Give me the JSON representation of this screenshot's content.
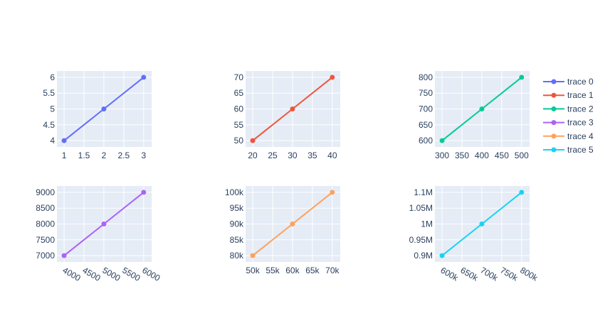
{
  "chart_data": [
    {
      "type": "line",
      "name": "trace 0",
      "color": "#636efa",
      "x": [
        1,
        2,
        3
      ],
      "y": [
        4,
        5,
        6
      ],
      "xlim": [
        0.82,
        3.2
      ],
      "ylim": [
        3.8,
        6.2
      ],
      "xticks": [
        {
          "v": 1,
          "l": "1"
        },
        {
          "v": 1.5,
          "l": "1.5"
        },
        {
          "v": 2,
          "l": "2"
        },
        {
          "v": 2.5,
          "l": "2.5"
        },
        {
          "v": 3,
          "l": "3"
        }
      ],
      "yticks": [
        {
          "v": 4,
          "l": "4"
        },
        {
          "v": 4.5,
          "l": "4.5"
        },
        {
          "v": 5,
          "l": "5"
        },
        {
          "v": 5.5,
          "l": "5.5"
        },
        {
          "v": 6,
          "l": "6"
        }
      ],
      "xrot": false
    },
    {
      "type": "line",
      "name": "trace 1",
      "color": "#EF553B",
      "x": [
        20,
        30,
        40
      ],
      "y": [
        50,
        60,
        70
      ],
      "xlim": [
        18.2,
        42
      ],
      "ylim": [
        48,
        72
      ],
      "xticks": [
        {
          "v": 20,
          "l": "20"
        },
        {
          "v": 25,
          "l": "25"
        },
        {
          "v": 30,
          "l": "30"
        },
        {
          "v": 35,
          "l": "35"
        },
        {
          "v": 40,
          "l": "40"
        }
      ],
      "yticks": [
        {
          "v": 50,
          "l": "50"
        },
        {
          "v": 55,
          "l": "55"
        },
        {
          "v": 60,
          "l": "60"
        },
        {
          "v": 65,
          "l": "65"
        },
        {
          "v": 70,
          "l": "70"
        }
      ],
      "xrot": false
    },
    {
      "type": "line",
      "name": "trace 2",
      "color": "#00cc96",
      "x": [
        300,
        400,
        500
      ],
      "y": [
        600,
        700,
        800
      ],
      "xlim": [
        282,
        520
      ],
      "ylim": [
        580,
        820
      ],
      "xticks": [
        {
          "v": 300,
          "l": "300"
        },
        {
          "v": 350,
          "l": "350"
        },
        {
          "v": 400,
          "l": "400"
        },
        {
          "v": 450,
          "l": "450"
        },
        {
          "v": 500,
          "l": "500"
        }
      ],
      "yticks": [
        {
          "v": 600,
          "l": "600"
        },
        {
          "v": 650,
          "l": "650"
        },
        {
          "v": 700,
          "l": "700"
        },
        {
          "v": 750,
          "l": "750"
        },
        {
          "v": 800,
          "l": "800"
        }
      ],
      "xrot": false
    },
    {
      "type": "line",
      "name": "trace 3",
      "color": "#ab63fa",
      "x": [
        4000,
        5000,
        6000
      ],
      "y": [
        7000,
        8000,
        9000
      ],
      "xlim": [
        3820,
        6200
      ],
      "ylim": [
        6800,
        9200
      ],
      "xticks": [
        {
          "v": 4000,
          "l": "4000"
        },
        {
          "v": 4500,
          "l": "4500"
        },
        {
          "v": 5000,
          "l": "5000"
        },
        {
          "v": 5500,
          "l": "5500"
        },
        {
          "v": 6000,
          "l": "6000"
        }
      ],
      "yticks": [
        {
          "v": 7000,
          "l": "7000"
        },
        {
          "v": 7500,
          "l": "7500"
        },
        {
          "v": 8000,
          "l": "8000"
        },
        {
          "v": 8500,
          "l": "8500"
        },
        {
          "v": 9000,
          "l": "9000"
        }
      ],
      "xrot": true
    },
    {
      "type": "line",
      "name": "trace 4",
      "color": "#FFA15A",
      "x": [
        50000,
        60000,
        70000
      ],
      "y": [
        80000,
        90000,
        100000
      ],
      "xlim": [
        48200,
        72000
      ],
      "ylim": [
        78000,
        102000
      ],
      "xticks": [
        {
          "v": 50000,
          "l": "50k"
        },
        {
          "v": 55000,
          "l": "55k"
        },
        {
          "v": 60000,
          "l": "60k"
        },
        {
          "v": 65000,
          "l": "65k"
        },
        {
          "v": 70000,
          "l": "70k"
        }
      ],
      "yticks": [
        {
          "v": 80000,
          "l": "80k"
        },
        {
          "v": 85000,
          "l": "85k"
        },
        {
          "v": 90000,
          "l": "90k"
        },
        {
          "v": 95000,
          "l": "95k"
        },
        {
          "v": 100000,
          "l": "100k"
        }
      ],
      "xrot": false
    },
    {
      "type": "line",
      "name": "trace 5",
      "color": "#19d3f3",
      "x": [
        600000,
        700000,
        800000
      ],
      "y": [
        900000,
        1000000,
        1100000
      ],
      "xlim": [
        582000,
        820000
      ],
      "ylim": [
        880000,
        1120000
      ],
      "xticks": [
        {
          "v": 600000,
          "l": "600k"
        },
        {
          "v": 650000,
          "l": "650k"
        },
        {
          "v": 700000,
          "l": "700k"
        },
        {
          "v": 750000,
          "l": "750k"
        },
        {
          "v": 800000,
          "l": "800k"
        }
      ],
      "yticks": [
        {
          "v": 900000,
          "l": "0.9M"
        },
        {
          "v": 950000,
          "l": "0.95M"
        },
        {
          "v": 1000000,
          "l": "1M"
        },
        {
          "v": 1050000,
          "l": "1.05M"
        },
        {
          "v": 1100000,
          "l": "1.1M"
        }
      ],
      "xrot": true
    }
  ],
  "legend": {
    "placement": "right",
    "items": [
      "trace 0",
      "trace 1",
      "trace 2",
      "trace 3",
      "trace 4",
      "trace 5"
    ]
  },
  "style": {
    "plot_bg": "#e5ecf6",
    "grid": true
  }
}
